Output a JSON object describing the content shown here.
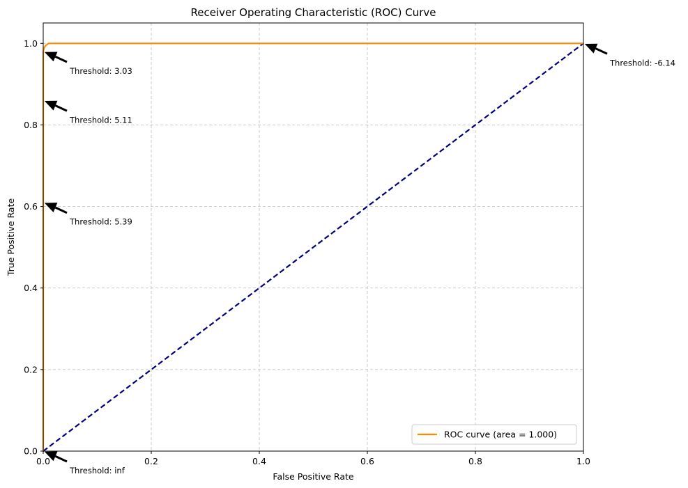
{
  "chart_data": {
    "type": "line",
    "title": "Receiver Operating Characteristic (ROC) Curve",
    "xlabel": "False Positive Rate",
    "ylabel": "True Positive Rate",
    "xlim": [
      0.0,
      1.0
    ],
    "ylim": [
      0.0,
      1.05
    ],
    "xticks": [
      "0.0",
      "0.2",
      "0.4",
      "0.6",
      "0.8",
      "1.0"
    ],
    "xtick_values": [
      0.0,
      0.2,
      0.4,
      0.6,
      0.8,
      1.0
    ],
    "yticks": [
      "0.0",
      "0.2",
      "0.4",
      "0.6",
      "0.8",
      "1.0"
    ],
    "ytick_values": [
      0.0,
      0.2,
      0.4,
      0.6,
      0.8,
      1.0
    ],
    "grid": true,
    "legend_position": "lower-right",
    "series": [
      {
        "name": "ROC curve (area = 1.000)",
        "color": "#ff8c00",
        "style": "solid",
        "x": [
          0.0,
          0.0,
          0.0,
          0.0,
          0.002,
          0.005,
          0.01,
          0.05,
          1.0
        ],
        "y": [
          0.0,
          0.61,
          0.86,
          0.98,
          0.99,
          0.995,
          1.0,
          1.0,
          1.0
        ]
      },
      {
        "name": "",
        "color": "#000080",
        "style": "dashed",
        "x": [
          0.0,
          1.0
        ],
        "y": [
          0.0,
          1.0
        ]
      }
    ],
    "annotations": [
      {
        "text": "Threshold: 3.03",
        "x": 0.0,
        "y": 0.98
      },
      {
        "text": "Threshold: 5.11",
        "x": 0.0,
        "y": 0.86
      },
      {
        "text": "Threshold: 5.39",
        "x": 0.0,
        "y": 0.61
      },
      {
        "text": "Threshold: inf",
        "x": 0.0,
        "y": 0.0
      },
      {
        "text": "Threshold: -6.14",
        "x": 1.0,
        "y": 1.0
      }
    ]
  }
}
